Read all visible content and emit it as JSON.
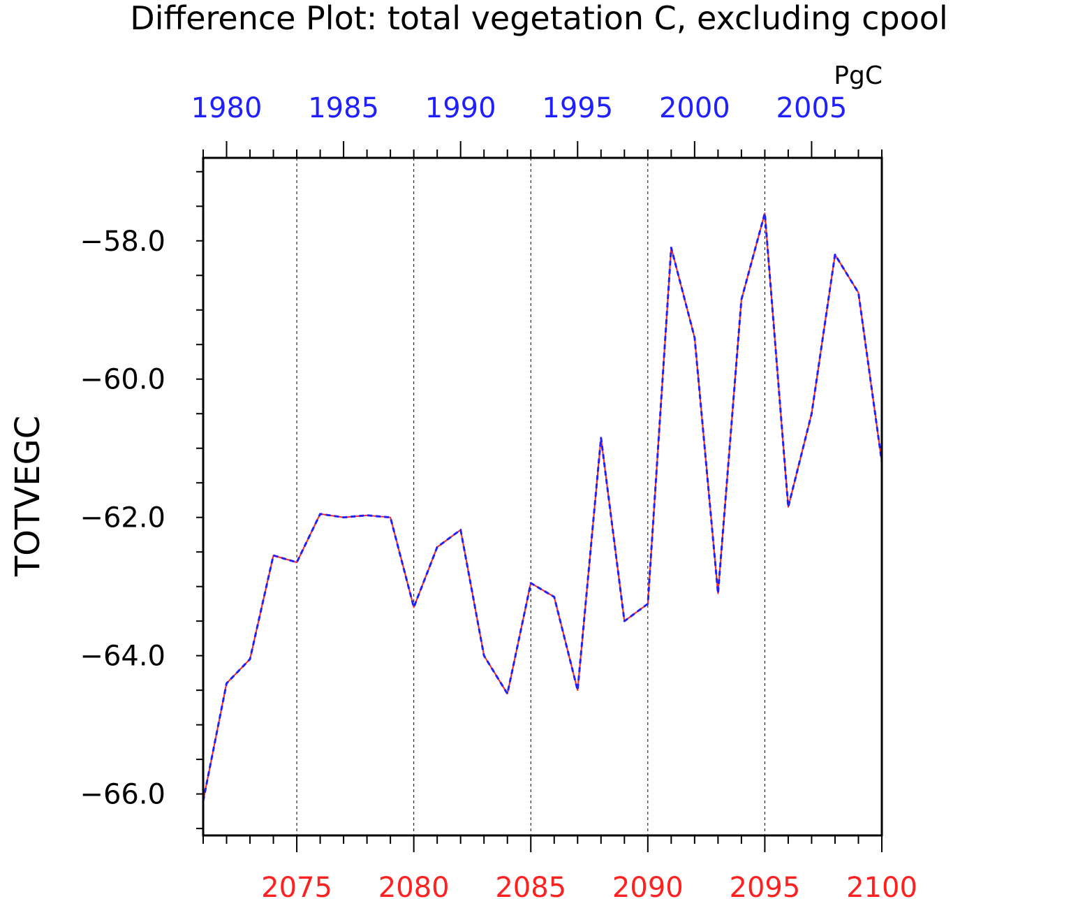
{
  "chart_data": {
    "type": "line",
    "title": "Difference Plot: total vegetation C, excluding cpool",
    "units": "PgC",
    "ylabel": "TOTVEGC",
    "ylim": [
      -66.6,
      -56.8
    ],
    "yticks": [
      -58.0,
      -60.0,
      -62.0,
      -64.0,
      -66.0
    ],
    "ytick_labels": [
      "−58.0",
      "−60.0",
      "−62.0",
      "−64.0",
      "−66.0"
    ],
    "bottom_axis": {
      "color": "#ff2020",
      "range": [
        2071,
        2100
      ],
      "ticks": [
        2075,
        2080,
        2085,
        2090,
        2095,
        2100
      ],
      "tick_labels": [
        "2075",
        "2080",
        "2085",
        "2090",
        "2095",
        "2100"
      ]
    },
    "top_axis": {
      "color": "#2020ff",
      "range": [
        1979,
        2008
      ],
      "ticks": [
        1980,
        1985,
        1990,
        1995,
        2000,
        2005
      ],
      "tick_labels": [
        "1980",
        "1985",
        "1990",
        "1995",
        "2000",
        "2005"
      ]
    },
    "grid": "vertical dashed at major bottom-axis ticks",
    "x": [
      2071,
      2072,
      2073,
      2074,
      2075,
      2076,
      2077,
      2078,
      2079,
      2080,
      2081,
      2082,
      2083,
      2084,
      2085,
      2086,
      2087,
      2088,
      2089,
      2090,
      2091,
      2092,
      2093,
      2094,
      2095,
      2096,
      2097,
      2098,
      2099,
      2100
    ],
    "series": [
      {
        "color": "#ff2020",
        "style": "solid",
        "values": [
          -66.1,
          -64.4,
          -64.05,
          -62.55,
          -62.65,
          -61.95,
          -62.0,
          -61.97,
          -62.0,
          -63.3,
          -62.43,
          -62.18,
          -64.0,
          -64.55,
          -62.95,
          -63.15,
          -64.5,
          -60.85,
          -63.5,
          -63.25,
          -58.1,
          -59.4,
          -63.1,
          -58.85,
          -57.6,
          -61.85,
          -60.5,
          -58.2,
          -58.75,
          -61.2
        ]
      },
      {
        "color": "#2020ff",
        "style": "dashed",
        "values": [
          -66.1,
          -64.4,
          -64.05,
          -62.55,
          -62.65,
          -61.95,
          -62.0,
          -61.97,
          -62.0,
          -63.3,
          -62.43,
          -62.18,
          -64.0,
          -64.55,
          -62.95,
          -63.15,
          -64.5,
          -60.85,
          -63.5,
          -63.25,
          -58.1,
          -59.4,
          -63.1,
          -58.85,
          -57.6,
          -61.85,
          -60.5,
          -58.2,
          -58.75,
          -61.2
        ]
      }
    ]
  }
}
